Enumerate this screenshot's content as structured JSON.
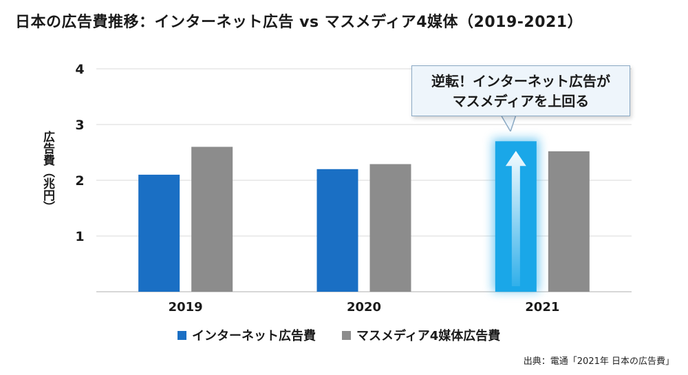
{
  "title": "日本の広告費推移：インターネット広告 vs マスメディア4媒体（2019-2021）",
  "callout": {
    "line1": "逆転！インターネット広告が",
    "line2": "マスメディアを上回る"
  },
  "source": "出典：電通「2021年 日本の広告費」",
  "colors": {
    "internet": "#1a6fc4",
    "mass": "#8c8c8c",
    "highlight": "#1aa7e8",
    "grid": "#d9d9d9"
  },
  "chart_data": {
    "type": "bar",
    "title": "日本の広告費推移：インターネット広告 vs マスメディア4媒体（2019-2021）",
    "xlabel": "",
    "ylabel": "広告費（兆円）",
    "ylim": [
      0,
      4
    ],
    "yticks": [
      1,
      2,
      3,
      4
    ],
    "categories": [
      "2019",
      "2020",
      "2021"
    ],
    "series": [
      {
        "name": "インターネット広告費",
        "values": [
          2.1,
          2.2,
          2.7
        ]
      },
      {
        "name": "マスメディア4媒体広告費",
        "values": [
          2.6,
          2.29,
          2.52
        ]
      }
    ],
    "highlight": {
      "series": 0,
      "category": 2
    }
  }
}
